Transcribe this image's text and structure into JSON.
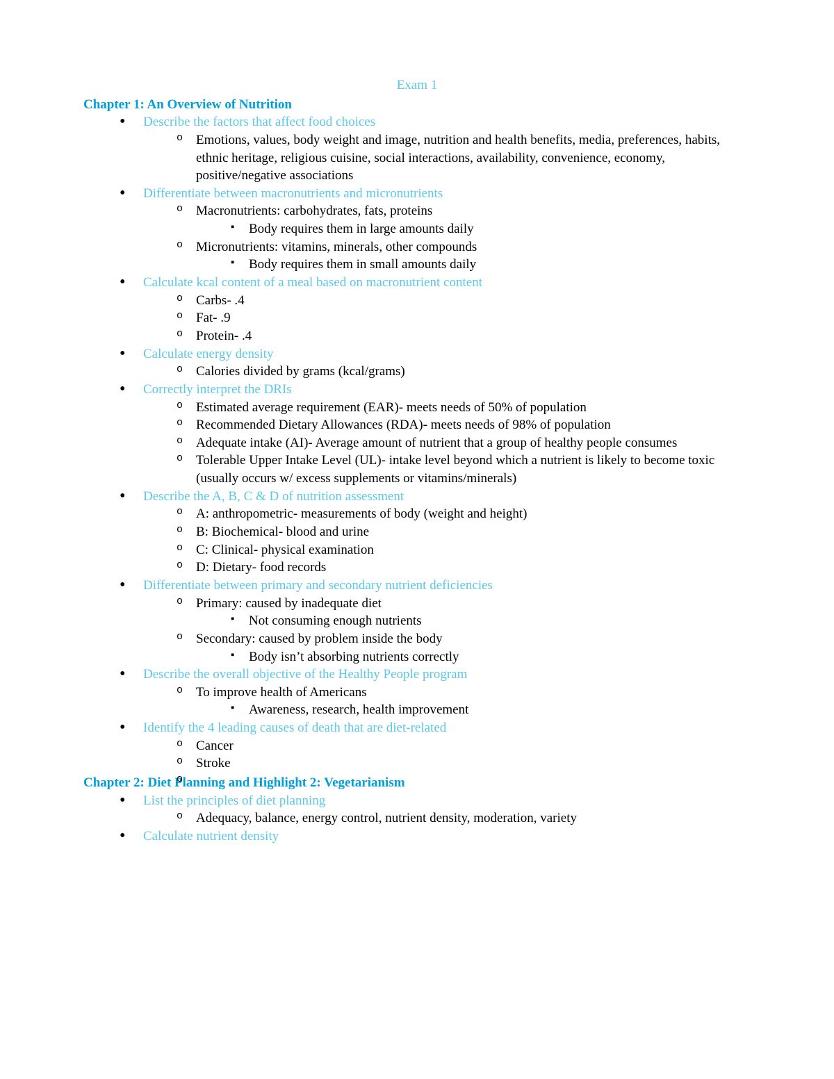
{
  "colors": {
    "title": "#5ac8e8",
    "chapter": "#009fd8",
    "topic": "#5ac8e8",
    "body": "#000000",
    "background": "#ffffff"
  },
  "typography": {
    "font_family": "Times New Roman",
    "body_fontsize_pt": 14,
    "chapter_weight": "bold"
  },
  "title": "Exam 1",
  "chapters": [
    {
      "heading": "Chapter 1: An Overview of Nutrition",
      "topics": [
        {
          "label": "Describe the factors that affect food choices",
          "points": [
            {
              "text": "Emotions, values, body weight and image, nutrition and health benefits, media, preferences, habits, ethnic heritage, religious cuisine, social interactions, availability, convenience, economy, positive/negative associations"
            }
          ]
        },
        {
          "label": "Differentiate between macronutrients and micronutrients",
          "points": [
            {
              "text": "Macronutrients: carbohydrates, fats, proteins",
              "sub": [
                "Body requires them in large amounts daily"
              ]
            },
            {
              "text": "Micronutrients: vitamins, minerals, other compounds",
              "sub": [
                "Body requires them in small amounts daily"
              ]
            }
          ]
        },
        {
          "label": "Calculate kcal content of a meal based on macronutrient content",
          "points": [
            {
              "text": "Carbs- .4"
            },
            {
              "text": "Fat- .9"
            },
            {
              "text": "Protein- .4"
            }
          ]
        },
        {
          "label": "Calculate energy density",
          "points": [
            {
              "text": "Calories divided by grams (kcal/grams)"
            }
          ]
        },
        {
          "label": "Correctly interpret the DRIs",
          "points": [
            {
              "text": "Estimated average requirement (EAR)- meets needs of 50% of population"
            },
            {
              "text": "Recommended Dietary Allowances (RDA)- meets needs of 98% of population"
            },
            {
              "text": "Adequate intake (AI)- Average amount of nutrient that a group of healthy people consumes"
            },
            {
              "text": "Tolerable Upper Intake Level (UL)- intake level beyond which a nutrient is likely to become toxic (usually occurs w/ excess supplements or vitamins/minerals)"
            }
          ]
        },
        {
          "label": "Describe the A, B, C & D of nutrition assessment",
          "points": [
            {
              "text": "A: anthropometric- measurements of body (weight and height)"
            },
            {
              "text": "B: Biochemical- blood and urine"
            },
            {
              "text": "C: Clinical- physical examination"
            },
            {
              "text": "D: Dietary- food records"
            }
          ]
        },
        {
          "label": "Differentiate between primary and secondary nutrient deficiencies",
          "points": [
            {
              "text": "Primary: caused by inadequate diet",
              "sub": [
                "Not consuming enough nutrients"
              ]
            },
            {
              "text": "Secondary: caused by problem inside the body",
              "sub": [
                "Body isn’t absorbing nutrients correctly"
              ]
            }
          ]
        },
        {
          "label": "Describe the overall objective of the Healthy People program",
          "points": [
            {
              "text": "To improve health of Americans",
              "sub": [
                "Awareness, research, health improvement"
              ]
            }
          ]
        },
        {
          "label": "Identify the 4 leading causes of death that are diet-related",
          "points": [
            {
              "text": "Cancer"
            },
            {
              "text": "Stroke"
            },
            {
              "text": ""
            }
          ]
        }
      ]
    },
    {
      "heading": "Chapter 2: Diet Planning and Highlight 2: Vegetarianism",
      "topics": [
        {
          "label": "List the principles of diet planning",
          "points": [
            {
              "text": "Adequacy, balance, energy control, nutrient density, moderation, variety"
            }
          ]
        },
        {
          "label": "Calculate nutrient density",
          "points": []
        }
      ]
    }
  ]
}
